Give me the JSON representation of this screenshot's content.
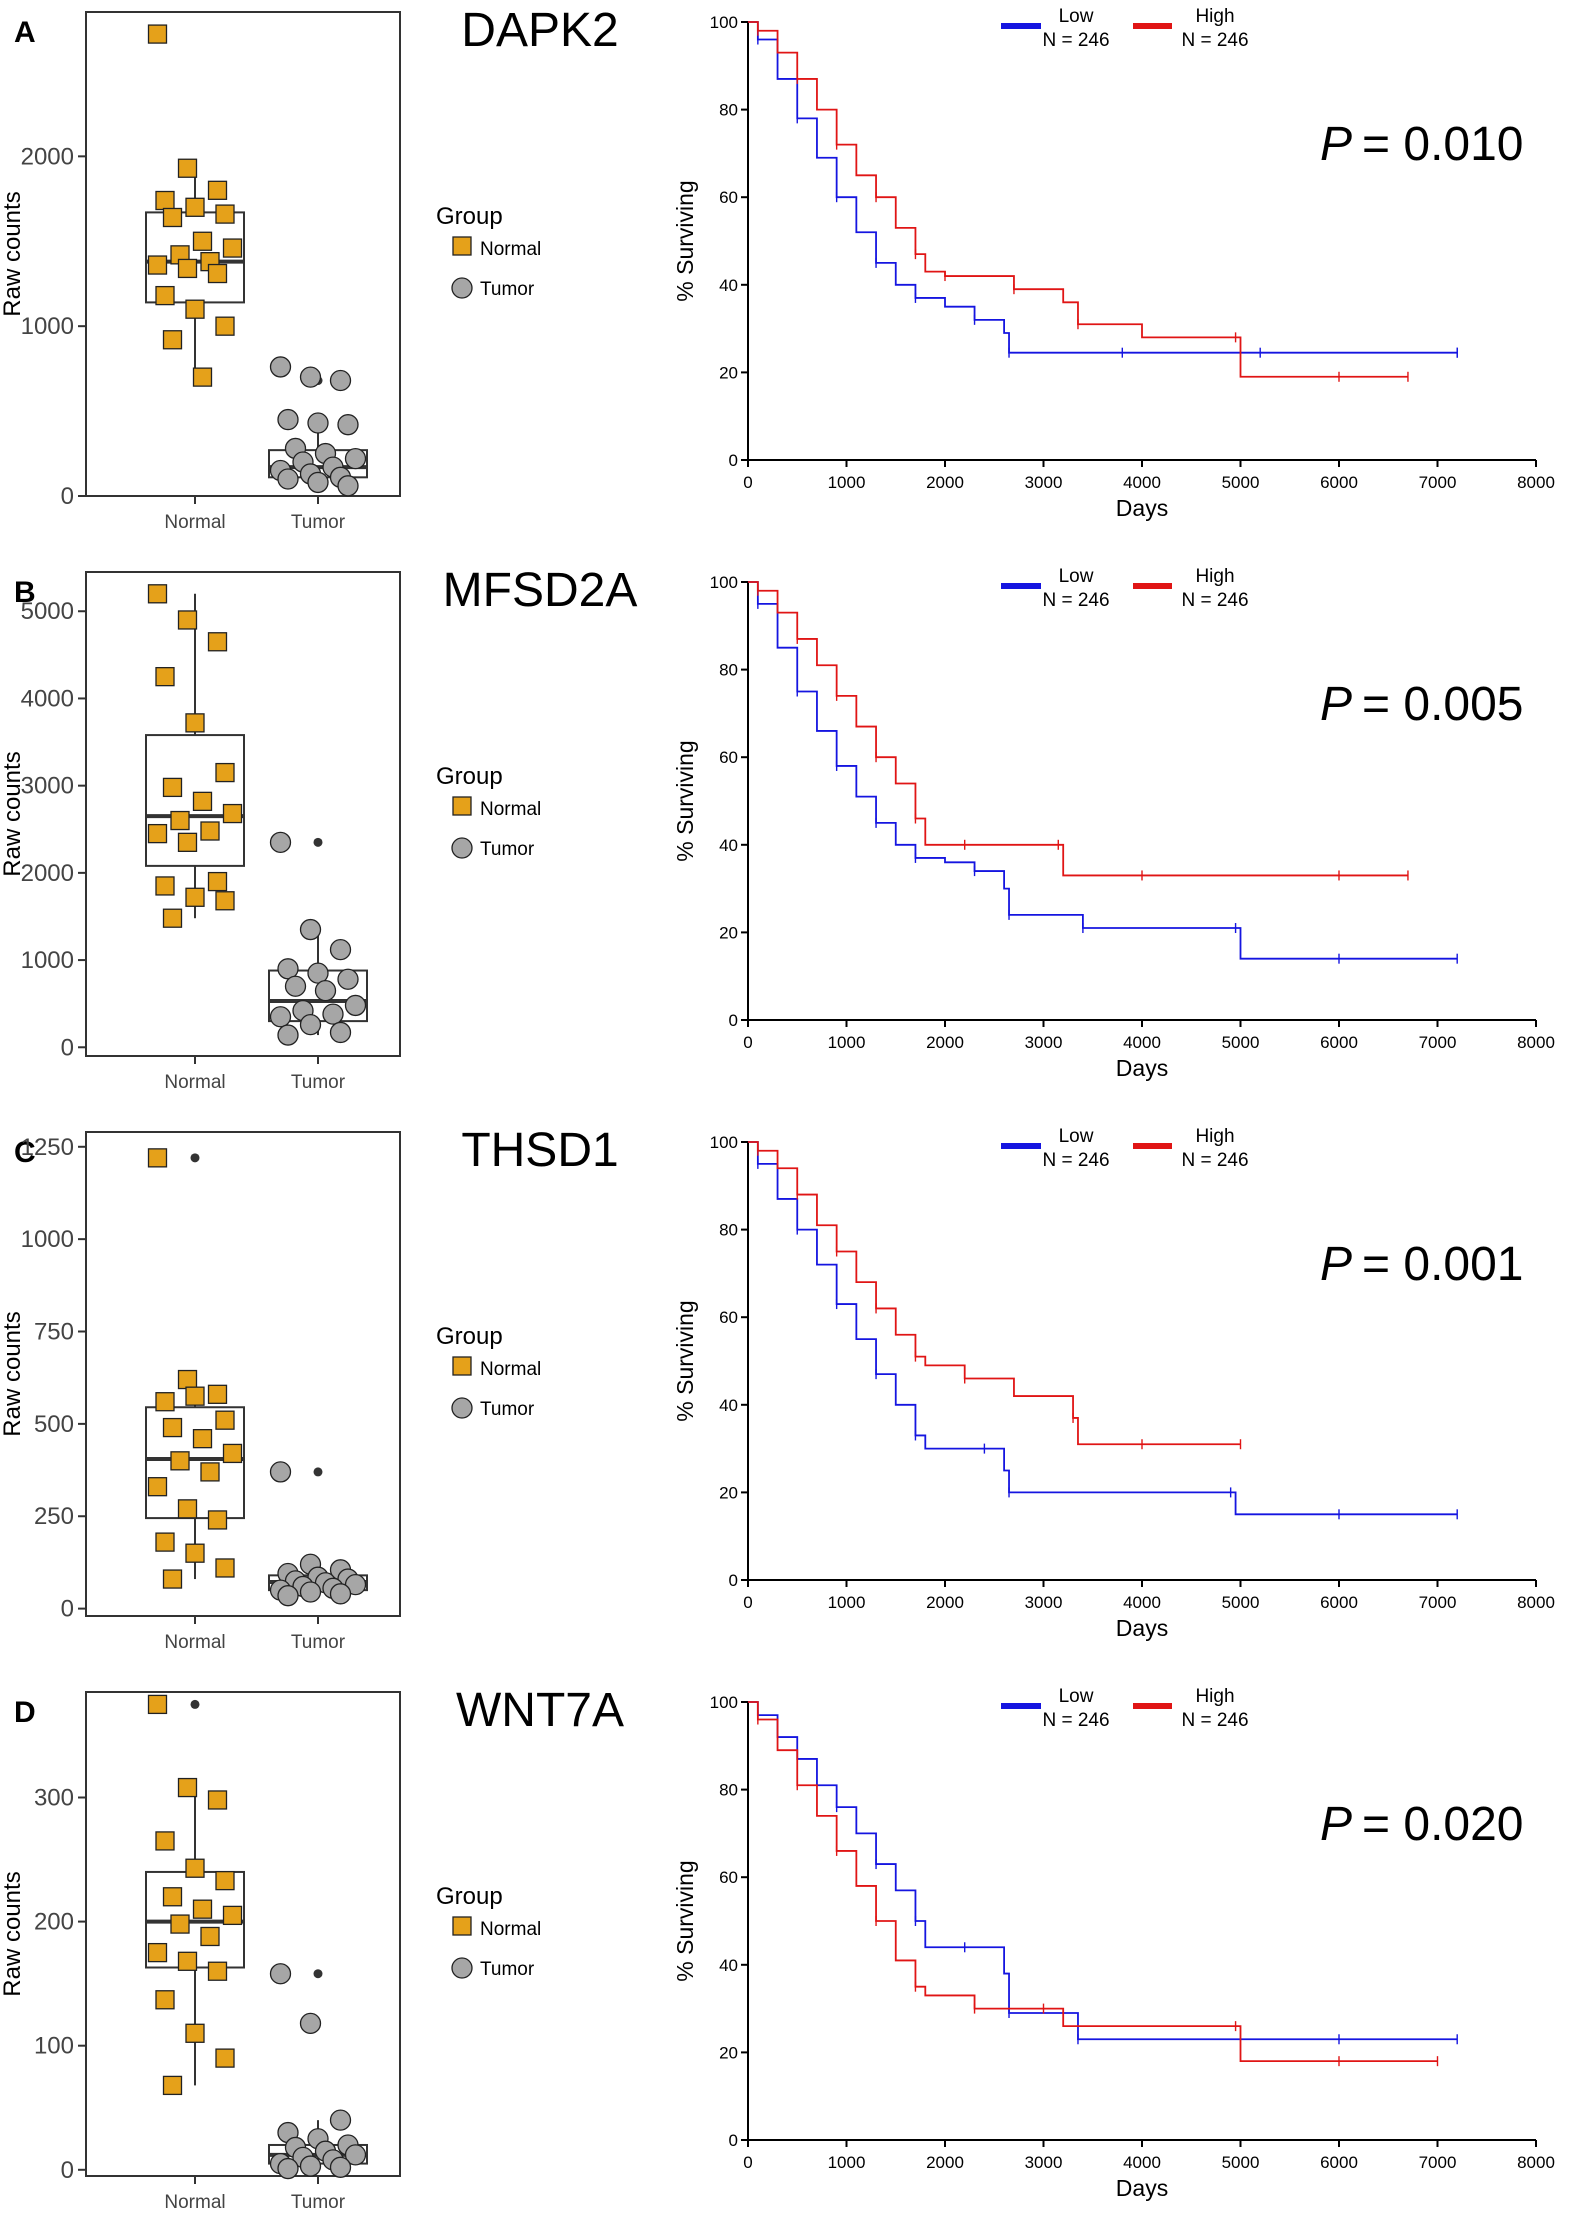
{
  "colors": {
    "normal_fill": "#E5A11A",
    "tumor_fill": "#A6A6A6",
    "low_line": "#1515E0",
    "high_line": "#E01515",
    "axis": "#000000"
  },
  "legend_box": {
    "title": "Group",
    "items": [
      "Normal",
      "Tumor"
    ]
  },
  "panels": [
    {
      "letter": "A",
      "gene": "DAPK2",
      "pvalue_prefix": "P",
      "pvalue_text": "= 0.010",
      "box_chart": {
        "type": "boxplot",
        "ylabel": "Raw counts",
        "categories": [
          "Normal",
          "Tumor"
        ],
        "ylim": [
          0,
          2850
        ],
        "yticks": [
          0,
          1000,
          2000
        ],
        "normal": {
          "q1": 1140,
          "median": 1380,
          "q3": 1670,
          "whisker_low": 700,
          "whisker_high": 1930,
          "points": [
            2720,
            1930,
            1800,
            1740,
            1700,
            1660,
            1640,
            1500,
            1460,
            1420,
            1380,
            1360,
            1340,
            1310,
            1180,
            1100,
            1000,
            920,
            700
          ],
          "outliers": []
        },
        "tumor": {
          "q1": 110,
          "median": 170,
          "q3": 270,
          "whisker_low": 60,
          "whisker_high": 420,
          "points": [
            760,
            700,
            680,
            450,
            430,
            420,
            280,
            250,
            220,
            200,
            170,
            150,
            130,
            110,
            100,
            80,
            60
          ],
          "outliers": [
            680
          ]
        }
      },
      "survival": {
        "type": "line",
        "xlabel": "Days",
        "ylabel": "% Surviving",
        "xlim": [
          0,
          8000
        ],
        "ylim": [
          0,
          100
        ],
        "xticks": [
          0,
          1000,
          2000,
          3000,
          4000,
          5000,
          6000,
          7000,
          8000
        ],
        "yticks": [
          0,
          20,
          40,
          60,
          80,
          100
        ],
        "legend": {
          "low": "Low",
          "high": "High",
          "n_low": "N = 246",
          "n_high": "N = 246"
        },
        "series": [
          {
            "name": "Low",
            "x": [
              0,
              100,
              300,
              500,
              700,
              900,
              1100,
              1300,
              1500,
              1700,
              2000,
              2300,
              2600,
              2650,
              3200,
              3800,
              4500,
              5200,
              6000,
              7200
            ],
            "y": [
              100,
              96,
              87,
              78,
              69,
              60,
              52,
              45,
              40,
              37,
              35,
              32,
              29,
              24.5,
              24.5,
              24.5,
              24.5,
              24.5,
              24.5,
              24.5
            ]
          },
          {
            "name": "High",
            "x": [
              0,
              100,
              300,
              500,
              700,
              900,
              1100,
              1300,
              1500,
              1700,
              1800,
              2000,
              2300,
              2700,
              3200,
              3350,
              4000,
              4950,
              5000,
              6000,
              6700
            ],
            "y": [
              100,
              98,
              93,
              87,
              80,
              72,
              65,
              60,
              53,
              47,
              43,
              42,
              42,
              39,
              36,
              31,
              28,
              28,
              19,
              19,
              19
            ]
          }
        ]
      }
    },
    {
      "letter": "B",
      "gene": "MFSD2A",
      "pvalue_prefix": "P",
      "pvalue_text": "= 0.005",
      "box_chart": {
        "type": "boxplot",
        "ylabel": "Raw counts",
        "categories": [
          "Normal",
          "Tumor"
        ],
        "ylim": [
          -100,
          5450
        ],
        "yticks": [
          0,
          1000,
          2000,
          3000,
          4000,
          5000
        ],
        "normal": {
          "q1": 2080,
          "median": 2650,
          "q3": 3580,
          "whisker_low": 1480,
          "whisker_high": 5200,
          "points": [
            5200,
            4900,
            4650,
            4250,
            3720,
            3150,
            2980,
            2820,
            2680,
            2600,
            2480,
            2450,
            2350,
            1900,
            1850,
            1720,
            1680,
            1480
          ],
          "outliers": []
        },
        "tumor": {
          "q1": 300,
          "median": 530,
          "q3": 880,
          "whisker_low": 140,
          "whisker_high": 1350,
          "points": [
            2350,
            1350,
            1120,
            900,
            850,
            780,
            700,
            650,
            480,
            420,
            380,
            350,
            260,
            170,
            140
          ],
          "outliers": [
            2350
          ]
        }
      },
      "survival": {
        "type": "line",
        "xlabel": "Days",
        "ylabel": "% Surviving",
        "xlim": [
          0,
          8000
        ],
        "ylim": [
          0,
          100
        ],
        "xticks": [
          0,
          1000,
          2000,
          3000,
          4000,
          5000,
          6000,
          7000,
          8000
        ],
        "yticks": [
          0,
          20,
          40,
          60,
          80,
          100
        ],
        "legend": {
          "low": "Low",
          "high": "High",
          "n_low": "N = 246",
          "n_high": "N = 246"
        },
        "series": [
          {
            "name": "Low",
            "x": [
              0,
              100,
              300,
              500,
              700,
              900,
              1100,
              1300,
              1500,
              1700,
              2000,
              2300,
              2600,
              2650,
              3300,
              3400,
              4000,
              4950,
              5000,
              6000,
              7200
            ],
            "y": [
              100,
              95,
              85,
              75,
              66,
              58,
              51,
              45,
              40,
              37,
              36,
              34,
              30,
              24,
              24,
              21,
              21,
              21,
              14,
              14,
              14
            ]
          },
          {
            "name": "High",
            "x": [
              0,
              100,
              300,
              500,
              700,
              900,
              1100,
              1300,
              1500,
              1700,
              1800,
              2200,
              3000,
              3150,
              3200,
              4000,
              5000,
              6000,
              6700
            ],
            "y": [
              100,
              98,
              93,
              87,
              81,
              74,
              67,
              60,
              54,
              46,
              40,
              40,
              40,
              40,
              33,
              33,
              33,
              33,
              33
            ]
          }
        ]
      }
    },
    {
      "letter": "C",
      "gene": "THSD1",
      "pvalue_prefix": "P",
      "pvalue_text": "= 0.001",
      "box_chart": {
        "type": "boxplot",
        "ylabel": "Raw counts",
        "categories": [
          "Normal",
          "Tumor"
        ],
        "ylim": [
          -20,
          1290
        ],
        "yticks": [
          0,
          250,
          500,
          750,
          1000,
          1250
        ],
        "normal": {
          "q1": 245,
          "median": 405,
          "q3": 545,
          "whisker_low": 80,
          "whisker_high": 620,
          "points": [
            1220,
            620,
            580,
            560,
            575,
            510,
            490,
            460,
            420,
            400,
            370,
            330,
            270,
            240,
            180,
            150,
            110,
            80
          ],
          "outliers": [
            1220
          ]
        },
        "tumor": {
          "q1": 50,
          "median": 72,
          "q3": 90,
          "whisker_low": 30,
          "whisker_high": 120,
          "points": [
            370,
            120,
            105,
            95,
            85,
            80,
            75,
            70,
            65,
            60,
            55,
            50,
            45,
            40,
            35
          ],
          "outliers": [
            370
          ]
        }
      },
      "survival": {
        "type": "line",
        "xlabel": "Days",
        "ylabel": "% Surviving",
        "xlim": [
          0,
          8000
        ],
        "ylim": [
          0,
          100
        ],
        "xticks": [
          0,
          1000,
          2000,
          3000,
          4000,
          5000,
          6000,
          7000,
          8000
        ],
        "yticks": [
          0,
          20,
          40,
          60,
          80,
          100
        ],
        "legend": {
          "low": "Low",
          "high": "High",
          "n_low": "N = 246",
          "n_high": "N = 246"
        },
        "series": [
          {
            "name": "Low",
            "x": [
              0,
              100,
              300,
              500,
              700,
              900,
              1100,
              1300,
              1500,
              1700,
              1800,
              2400,
              2600,
              2650,
              3500,
              4900,
              4950,
              6000,
              7200
            ],
            "y": [
              100,
              95,
              87,
              80,
              72,
              63,
              55,
              47,
              40,
              33,
              30,
              30,
              25,
              20,
              20,
              20,
              15,
              15,
              15
            ]
          },
          {
            "name": "High",
            "x": [
              0,
              100,
              300,
              500,
              700,
              900,
              1100,
              1300,
              1500,
              1700,
              1800,
              2200,
              2700,
              3300,
              3350,
              4000,
              5000
            ],
            "y": [
              100,
              98,
              94,
              88,
              81,
              75,
              68,
              62,
              56,
              51,
              49,
              46,
              42,
              37,
              31,
              31,
              31
            ]
          }
        ]
      }
    },
    {
      "letter": "D",
      "gene": "WNT7A",
      "pvalue_prefix": "P",
      "pvalue_text": "= 0.020",
      "box_chart": {
        "type": "boxplot",
        "ylabel": "Raw counts",
        "categories": [
          "Normal",
          "Tumor"
        ],
        "ylim": [
          -5,
          385
        ],
        "yticks": [
          0,
          100,
          200,
          300
        ],
        "normal": {
          "q1": 163,
          "median": 200,
          "q3": 240,
          "whisker_low": 68,
          "whisker_high": 310,
          "points": [
            375,
            308,
            298,
            265,
            243,
            233,
            220,
            210,
            205,
            198,
            188,
            175,
            168,
            160,
            137,
            110,
            90,
            68
          ],
          "outliers": [
            375
          ]
        },
        "tumor": {
          "q1": 5,
          "median": 12,
          "q3": 20,
          "whisker_low": 0,
          "whisker_high": 40,
          "points": [
            158,
            118,
            40,
            30,
            25,
            20,
            18,
            15,
            12,
            10,
            8,
            5,
            3,
            2,
            1
          ],
          "outliers": [
            158
          ]
        }
      },
      "survival": {
        "type": "line",
        "xlabel": "Days",
        "ylabel": "% Surviving",
        "xlim": [
          0,
          8000
        ],
        "ylim": [
          0,
          100
        ],
        "xticks": [
          0,
          1000,
          2000,
          3000,
          4000,
          5000,
          6000,
          7000,
          8000
        ],
        "yticks": [
          0,
          20,
          40,
          60,
          80,
          100
        ],
        "legend": {
          "low": "Low",
          "high": "High",
          "n_low": "N = 246",
          "n_high": "N = 246"
        },
        "series": [
          {
            "name": "Low",
            "x": [
              0,
              100,
              300,
              500,
              700,
              900,
              1100,
              1300,
              1500,
              1700,
              1800,
              2200,
              2600,
              2650,
              3300,
              3350,
              5000,
              6000,
              7200
            ],
            "y": [
              100,
              97,
              92,
              87,
              81,
              76,
              70,
              63,
              57,
              50,
              44,
              44,
              38,
              29,
              29,
              23,
              23,
              23,
              23
            ]
          },
          {
            "name": "High",
            "x": [
              0,
              100,
              300,
              500,
              700,
              900,
              1100,
              1300,
              1500,
              1700,
              1800,
              2300,
              2600,
              3000,
              3200,
              4950,
              5000,
              6000,
              7000
            ],
            "y": [
              100,
              96,
              89,
              81,
              74,
              66,
              58,
              50,
              41,
              35,
              33,
              30,
              30,
              30,
              26,
              26,
              18,
              18,
              18
            ]
          }
        ]
      }
    }
  ]
}
